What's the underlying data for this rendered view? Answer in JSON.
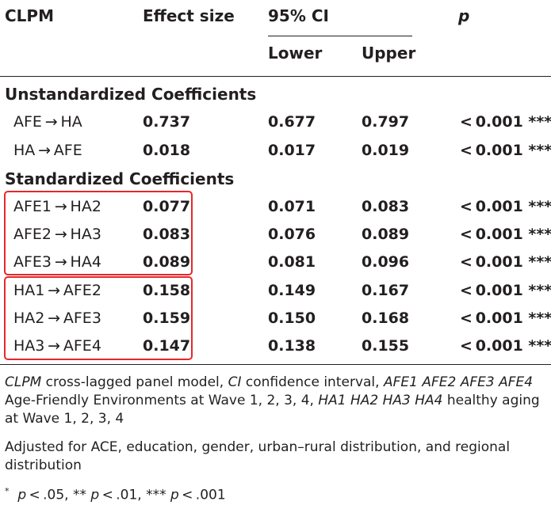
{
  "table": {
    "headers": {
      "clpm": "CLPM",
      "effect": "Effect size",
      "ci": "95% CI",
      "lower": "Lower",
      "upper": "Upper",
      "p": "p"
    },
    "section_unstd": "Unstandardized Coefficients",
    "section_std": "Standardized Coefficients",
    "rows": [
      {
        "path": "AFE → HA",
        "effect": "0.737",
        "lower": "0.677",
        "upper": "0.797",
        "p": "< 0.001 ***"
      },
      {
        "path": "HA → AFE",
        "effect": "0.018",
        "lower": "0.017",
        "upper": "0.019",
        "p": "< 0.001 ***"
      },
      {
        "path": "AFE1 → HA2",
        "effect": "0.077",
        "lower": "0.071",
        "upper": "0.083",
        "p": "< 0.001 ***"
      },
      {
        "path": "AFE2 → HA3",
        "effect": "0.083",
        "lower": "0.076",
        "upper": "0.089",
        "p": "< 0.001 ***"
      },
      {
        "path": "AFE3 → HA4",
        "effect": "0.089",
        "lower": "0.081",
        "upper": "0.096",
        "p": "< 0.001 ***"
      },
      {
        "path": "HA1 → AFE2",
        "effect": "0.158",
        "lower": "0.149",
        "upper": "0.167",
        "p": "< 0.001 ***"
      },
      {
        "path": "HA2 → AFE3",
        "effect": "0.159",
        "lower": "0.150",
        "upper": "0.168",
        "p": "< 0.001 ***"
      },
      {
        "path": "HA3 → AFE4",
        "effect": "0.147",
        "lower": "0.138",
        "upper": "0.155",
        "p": "< 0.001 ***"
      }
    ]
  },
  "notes": {
    "abbrev": {
      "clpm_abbr": "CLPM",
      "clpm_def": " cross-lagged panel model, ",
      "ci_abbr": "CI",
      "ci_def": " confidence interval, ",
      "afe_abbr": "AFE1 AFE2 AFE3 AFE4",
      "afe_def": " Age-Friendly Environments at Wave 1, 2, 3, 4, ",
      "ha_abbr": "HA1 HA2 HA3 HA4",
      "ha_def": " healthy aging at Wave 1, 2, 3, 4"
    },
    "adjusted": "Adjusted for ACE, education, gender, urban–rural distribution, and regional distribution",
    "sig": {
      "star": "*",
      "p1": "p",
      "t1": " < .05, ** ",
      "p2": "p",
      "t2": " < .01, *** ",
      "p3": "p",
      "t3": " < .001"
    }
  },
  "colors": {
    "text": "#231f20",
    "highlight_box": "#e8262a"
  }
}
